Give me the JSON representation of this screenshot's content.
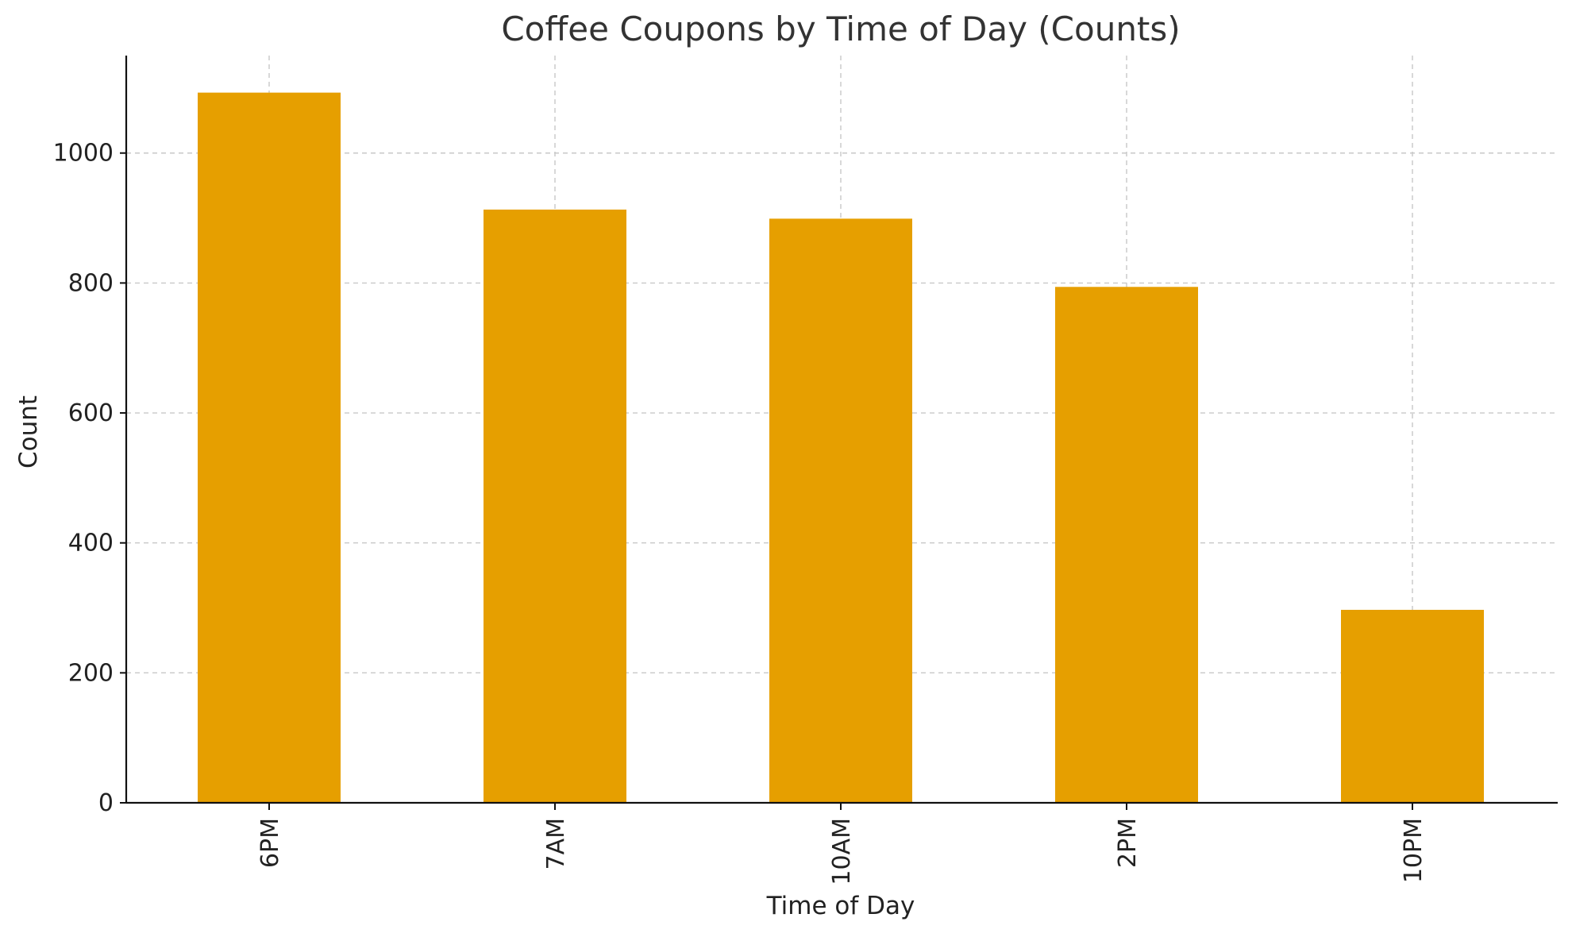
{
  "chart_data": {
    "type": "bar",
    "title": "Coffee Coupons by Time of Day (Counts)",
    "xlabel": "Time of Day",
    "ylabel": "Count",
    "categories": [
      "6PM",
      "7AM",
      "10AM",
      "2PM",
      "10PM"
    ],
    "values": [
      1093,
      913,
      899,
      794,
      297
    ],
    "ylim": [
      0,
      1150
    ],
    "yticks": [
      0,
      200,
      400,
      600,
      800,
      1000
    ],
    "bar_color": "#E69F00",
    "grid": true,
    "legend": "none",
    "x_tick_rotation": "vertical"
  }
}
